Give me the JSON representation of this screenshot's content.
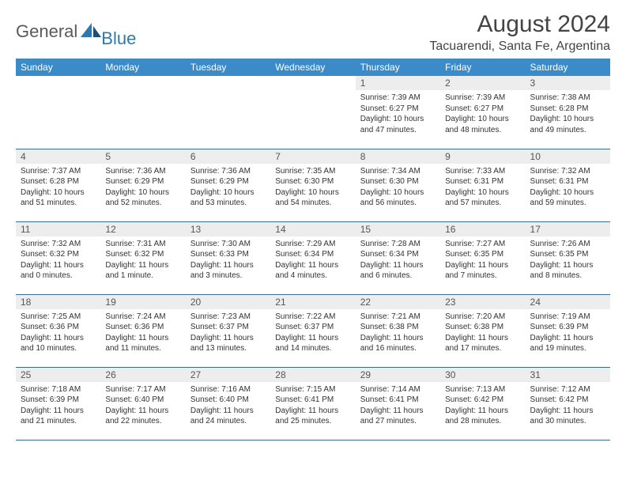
{
  "brand": {
    "part1": "General",
    "part2": "Blue"
  },
  "title": "August 2024",
  "location": "Tacuarendi, Santa Fe, Argentina",
  "colors": {
    "header_bg": "#3b8bc8",
    "header_fg": "#ffffff",
    "daynum_bg": "#ededed",
    "row_border": "#3b6a8f",
    "brand_blue": "#2a7ab0",
    "brand_gray": "#5a5a5a"
  },
  "day_names": [
    "Sunday",
    "Monday",
    "Tuesday",
    "Wednesday",
    "Thursday",
    "Friday",
    "Saturday"
  ],
  "weeks": [
    [
      null,
      null,
      null,
      null,
      {
        "n": "1",
        "sr": "7:39 AM",
        "ss": "6:27 PM",
        "dl": "10 hours and 47 minutes."
      },
      {
        "n": "2",
        "sr": "7:39 AM",
        "ss": "6:27 PM",
        "dl": "10 hours and 48 minutes."
      },
      {
        "n": "3",
        "sr": "7:38 AM",
        "ss": "6:28 PM",
        "dl": "10 hours and 49 minutes."
      }
    ],
    [
      {
        "n": "4",
        "sr": "7:37 AM",
        "ss": "6:28 PM",
        "dl": "10 hours and 51 minutes."
      },
      {
        "n": "5",
        "sr": "7:36 AM",
        "ss": "6:29 PM",
        "dl": "10 hours and 52 minutes."
      },
      {
        "n": "6",
        "sr": "7:36 AM",
        "ss": "6:29 PM",
        "dl": "10 hours and 53 minutes."
      },
      {
        "n": "7",
        "sr": "7:35 AM",
        "ss": "6:30 PM",
        "dl": "10 hours and 54 minutes."
      },
      {
        "n": "8",
        "sr": "7:34 AM",
        "ss": "6:30 PM",
        "dl": "10 hours and 56 minutes."
      },
      {
        "n": "9",
        "sr": "7:33 AM",
        "ss": "6:31 PM",
        "dl": "10 hours and 57 minutes."
      },
      {
        "n": "10",
        "sr": "7:32 AM",
        "ss": "6:31 PM",
        "dl": "10 hours and 59 minutes."
      }
    ],
    [
      {
        "n": "11",
        "sr": "7:32 AM",
        "ss": "6:32 PM",
        "dl": "11 hours and 0 minutes."
      },
      {
        "n": "12",
        "sr": "7:31 AM",
        "ss": "6:32 PM",
        "dl": "11 hours and 1 minute."
      },
      {
        "n": "13",
        "sr": "7:30 AM",
        "ss": "6:33 PM",
        "dl": "11 hours and 3 minutes."
      },
      {
        "n": "14",
        "sr": "7:29 AM",
        "ss": "6:34 PM",
        "dl": "11 hours and 4 minutes."
      },
      {
        "n": "15",
        "sr": "7:28 AM",
        "ss": "6:34 PM",
        "dl": "11 hours and 6 minutes."
      },
      {
        "n": "16",
        "sr": "7:27 AM",
        "ss": "6:35 PM",
        "dl": "11 hours and 7 minutes."
      },
      {
        "n": "17",
        "sr": "7:26 AM",
        "ss": "6:35 PM",
        "dl": "11 hours and 8 minutes."
      }
    ],
    [
      {
        "n": "18",
        "sr": "7:25 AM",
        "ss": "6:36 PM",
        "dl": "11 hours and 10 minutes."
      },
      {
        "n": "19",
        "sr": "7:24 AM",
        "ss": "6:36 PM",
        "dl": "11 hours and 11 minutes."
      },
      {
        "n": "20",
        "sr": "7:23 AM",
        "ss": "6:37 PM",
        "dl": "11 hours and 13 minutes."
      },
      {
        "n": "21",
        "sr": "7:22 AM",
        "ss": "6:37 PM",
        "dl": "11 hours and 14 minutes."
      },
      {
        "n": "22",
        "sr": "7:21 AM",
        "ss": "6:38 PM",
        "dl": "11 hours and 16 minutes."
      },
      {
        "n": "23",
        "sr": "7:20 AM",
        "ss": "6:38 PM",
        "dl": "11 hours and 17 minutes."
      },
      {
        "n": "24",
        "sr": "7:19 AM",
        "ss": "6:39 PM",
        "dl": "11 hours and 19 minutes."
      }
    ],
    [
      {
        "n": "25",
        "sr": "7:18 AM",
        "ss": "6:39 PM",
        "dl": "11 hours and 21 minutes."
      },
      {
        "n": "26",
        "sr": "7:17 AM",
        "ss": "6:40 PM",
        "dl": "11 hours and 22 minutes."
      },
      {
        "n": "27",
        "sr": "7:16 AM",
        "ss": "6:40 PM",
        "dl": "11 hours and 24 minutes."
      },
      {
        "n": "28",
        "sr": "7:15 AM",
        "ss": "6:41 PM",
        "dl": "11 hours and 25 minutes."
      },
      {
        "n": "29",
        "sr": "7:14 AM",
        "ss": "6:41 PM",
        "dl": "11 hours and 27 minutes."
      },
      {
        "n": "30",
        "sr": "7:13 AM",
        "ss": "6:42 PM",
        "dl": "11 hours and 28 minutes."
      },
      {
        "n": "31",
        "sr": "7:12 AM",
        "ss": "6:42 PM",
        "dl": "11 hours and 30 minutes."
      }
    ]
  ],
  "labels": {
    "sunrise": "Sunrise:",
    "sunset": "Sunset:",
    "daylight": "Daylight:"
  }
}
